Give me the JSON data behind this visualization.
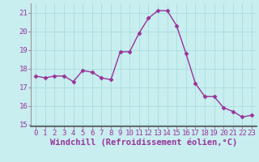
{
  "x": [
    0,
    1,
    2,
    3,
    4,
    5,
    6,
    7,
    8,
    9,
    10,
    11,
    12,
    13,
    14,
    15,
    16,
    17,
    18,
    19,
    20,
    21,
    22,
    23
  ],
  "y": [
    17.6,
    17.5,
    17.6,
    17.6,
    17.3,
    17.9,
    17.8,
    17.5,
    17.4,
    18.9,
    18.9,
    19.9,
    20.7,
    21.1,
    21.1,
    20.3,
    18.8,
    17.2,
    16.5,
    16.5,
    15.9,
    15.7,
    15.4,
    15.5
  ],
  "line_color": "#993399",
  "marker": "D",
  "marker_size": 2.5,
  "bg_color": "#c8eef0",
  "grid_color": "#aadddd",
  "xlabel": "Windchill (Refroidissement éolien,°C)",
  "xlabel_fontsize": 7.5,
  "ylim": [
    14.9,
    21.5
  ],
  "xlim": [
    -0.5,
    23.5
  ],
  "yticks": [
    15,
    16,
    17,
    18,
    19,
    20,
    21
  ],
  "xticks": [
    0,
    1,
    2,
    3,
    4,
    5,
    6,
    7,
    8,
    9,
    10,
    11,
    12,
    13,
    14,
    15,
    16,
    17,
    18,
    19,
    20,
    21,
    22,
    23
  ],
  "tick_color": "#993399",
  "tick_fontsize": 6.5,
  "spine_color": "#993399",
  "spine_bottom_color": "#666666"
}
